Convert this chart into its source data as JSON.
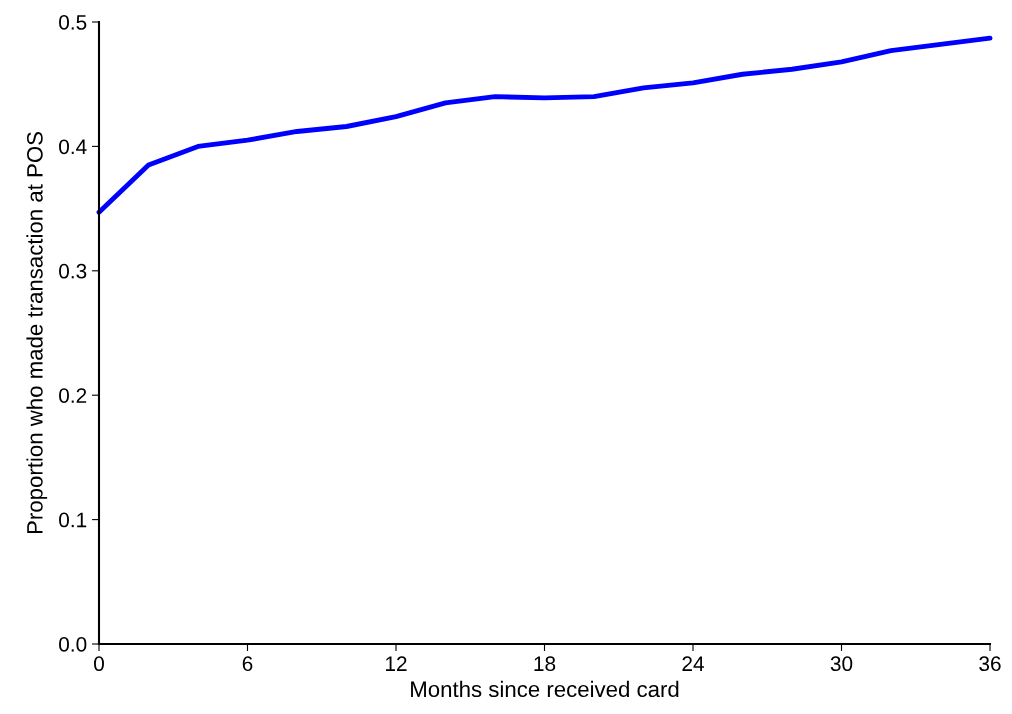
{
  "chart_data": {
    "type": "line",
    "xlabel": "Months since received card",
    "ylabel": "Proportion who made transaction at POS",
    "x": [
      0,
      2,
      4,
      6,
      8,
      10,
      12,
      14,
      16,
      18,
      20,
      22,
      24,
      26,
      28,
      30,
      32,
      34,
      36
    ],
    "series": [
      {
        "color": "#0000ff",
        "values": [
          0.347,
          0.385,
          0.4,
          0.405,
          0.412,
          0.416,
          0.424,
          0.435,
          0.44,
          0.439,
          0.44,
          0.447,
          0.451,
          0.458,
          0.462,
          0.468,
          0.477,
          0.482,
          0.487
        ]
      }
    ],
    "xlim": [
      0,
      36
    ],
    "xticks": [
      0,
      6,
      12,
      18,
      24,
      30,
      36
    ],
    "ylim": [
      0,
      0.5
    ],
    "yticks": [
      {
        "value": 0,
        "label": "0.0"
      },
      0.1,
      0.2,
      0.3,
      0.4,
      0.5
    ],
    "grid": false,
    "legend": false,
    "marker": "none",
    "line_style": "solid"
  }
}
